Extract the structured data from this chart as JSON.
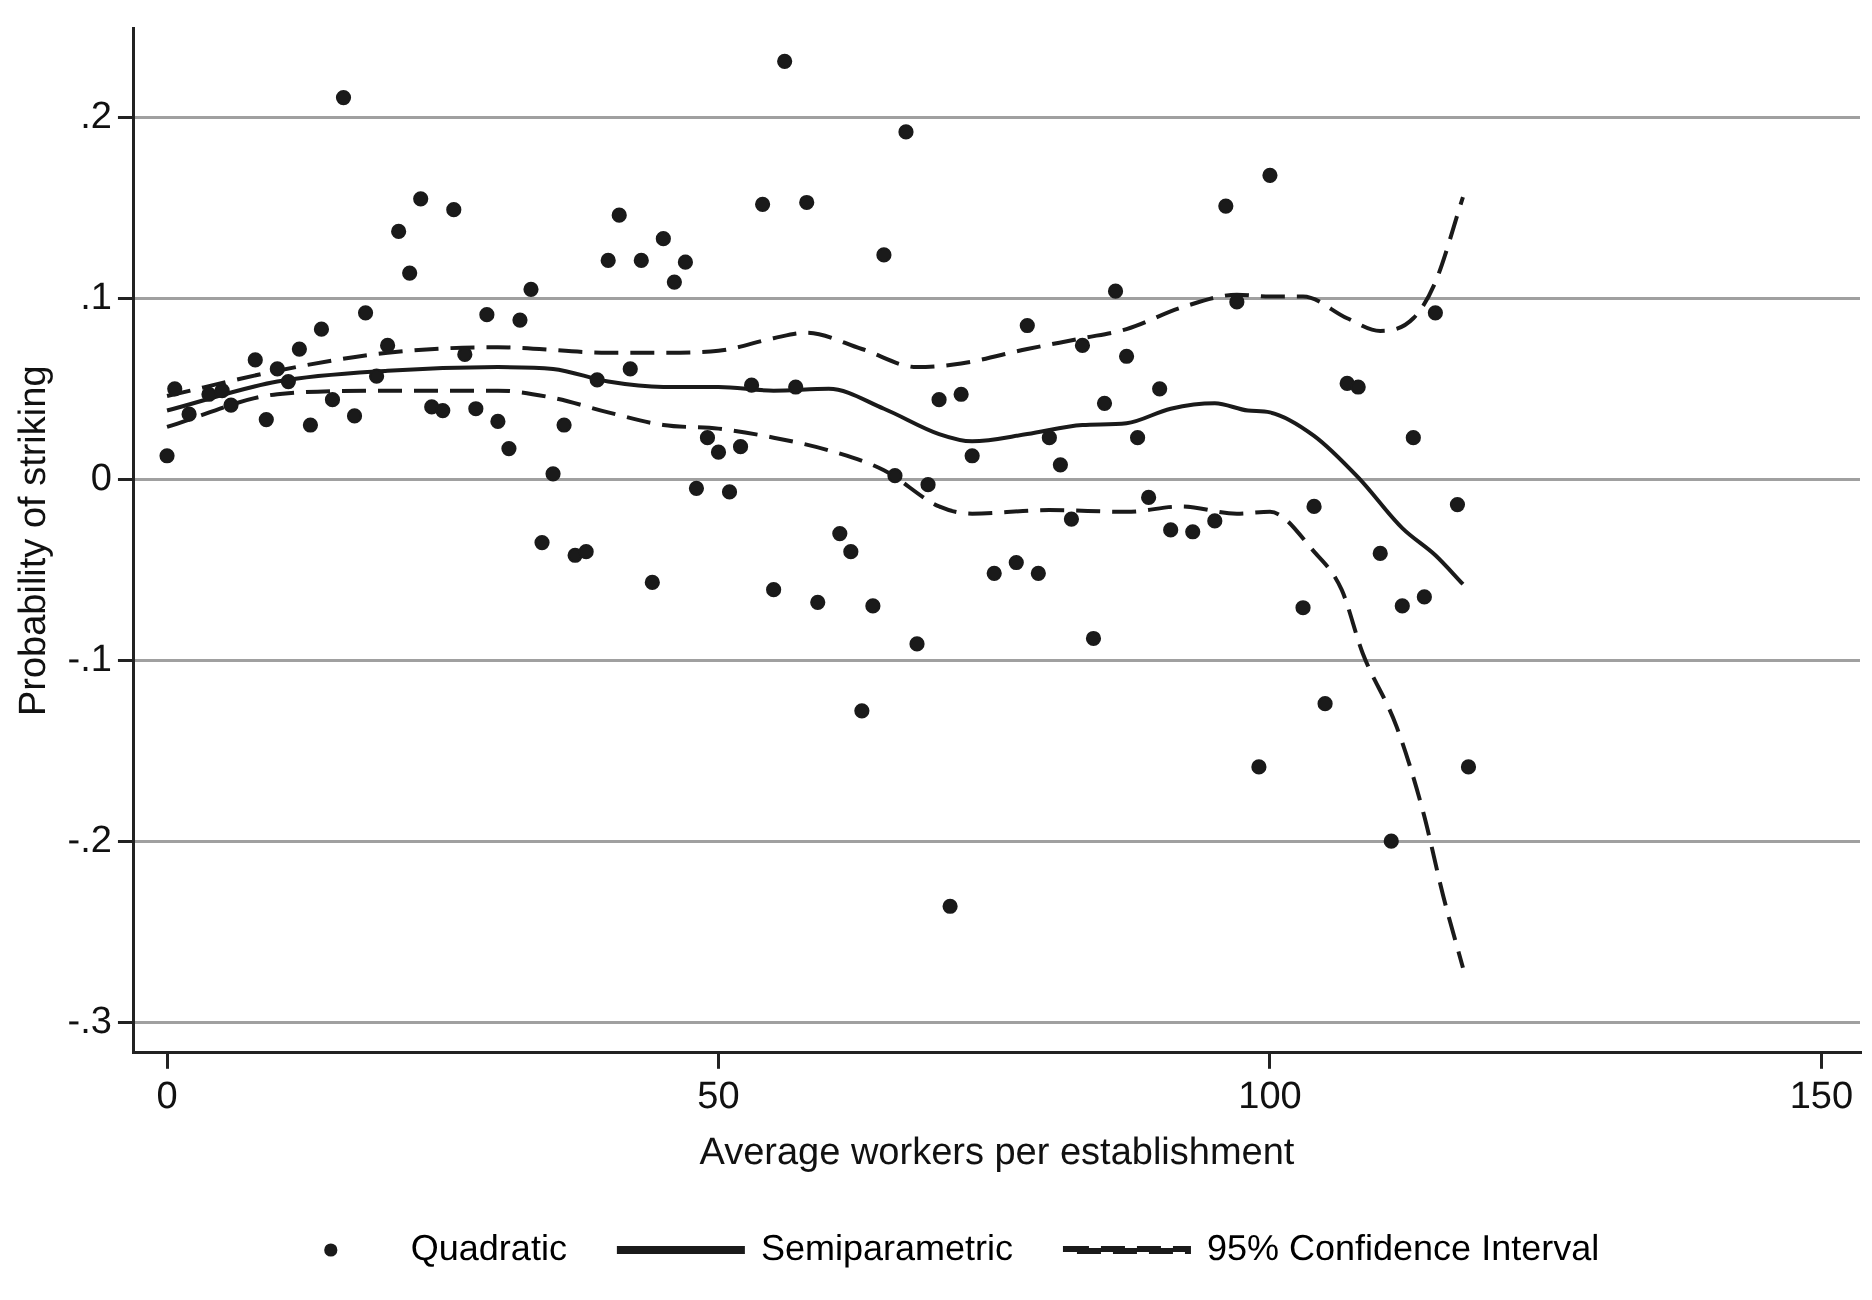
{
  "chart_data": {
    "type": "scatter",
    "xlabel": "Average workers per establishment",
    "ylabel": "Probability of striking",
    "xlim": [
      -3,
      153.5
    ],
    "xticks": [
      0,
      50,
      100,
      150
    ],
    "ylim": [
      -0.317,
      0.249
    ],
    "yticks": [
      {
        "value": 0.2,
        "label": ".2"
      },
      {
        "value": 0.1,
        "label": ".1"
      },
      {
        "value": 0,
        "label": "0"
      },
      {
        "value": -0.1,
        "label": "-.1"
      },
      {
        "value": -0.2,
        "label": "-.2"
      },
      {
        "value": -0.3,
        "label": "-.3"
      }
    ],
    "grid": "y",
    "legend": "bottom",
    "series": [
      {
        "name": "Quadratic",
        "marker": "circle",
        "color": "#1a1a1a",
        "x": [
          0,
          0.7,
          2,
          3.8,
          5,
          5.8,
          8,
          9,
          10,
          11,
          12,
          13,
          14,
          15,
          16,
          17,
          18,
          19,
          20,
          21,
          22,
          23,
          24,
          25,
          26,
          27,
          28,
          29,
          30,
          31,
          32,
          33,
          34,
          35,
          36,
          37,
          38,
          39,
          40,
          41,
          42,
          43,
          44,
          45,
          46,
          47,
          48,
          49,
          50,
          51,
          52,
          53,
          54,
          55,
          56,
          57,
          58,
          59,
          61,
          62,
          63,
          64,
          65,
          66,
          67,
          68,
          69,
          70,
          71,
          72,
          73,
          75,
          77,
          78,
          79,
          80,
          81,
          82,
          83,
          84,
          85,
          86,
          87,
          88,
          89,
          90,
          91,
          93,
          95,
          96,
          97,
          99,
          100,
          103,
          104,
          105,
          107,
          108,
          110,
          111,
          112,
          113,
          114,
          115,
          117,
          118
        ],
        "values": [
          0.013,
          0.05,
          0.036,
          0.047,
          0.049,
          0.041,
          0.066,
          0.033,
          0.061,
          0.054,
          0.072,
          0.03,
          0.083,
          0.044,
          0.211,
          0.035,
          0.092,
          0.057,
          0.074,
          0.137,
          0.114,
          0.155,
          0.04,
          0.038,
          0.149,
          0.069,
          0.039,
          0.091,
          0.032,
          0.017,
          0.088,
          0.105,
          -0.035,
          0.003,
          0.03,
          -0.042,
          -0.04,
          0.055,
          0.121,
          0.146,
          0.061,
          0.121,
          -0.057,
          0.133,
          0.109,
          0.12,
          -0.005,
          0.023,
          0.015,
          -0.007,
          0.018,
          0.052,
          0.152,
          -0.061,
          0.231,
          0.051,
          0.153,
          -0.068,
          -0.03,
          -0.04,
          -0.128,
          -0.07,
          0.124,
          0.002,
          0.192,
          -0.091,
          -0.003,
          0.044,
          -0.236,
          0.047,
          0.013,
          -0.052,
          -0.046,
          0.085,
          -0.052,
          0.023,
          0.008,
          -0.022,
          0.074,
          -0.088,
          0.042,
          0.104,
          0.068,
          0.023,
          -0.01,
          0.05,
          -0.028,
          -0.029,
          -0.023,
          0.151,
          0.098,
          -0.159,
          0.168,
          -0.071,
          -0.015,
          -0.124,
          0.053,
          0.051,
          -0.041,
          -0.2,
          -0.07,
          0.023,
          -0.065,
          0.092,
          -0.014,
          -0.159
        ]
      },
      {
        "name": "Semiparametric",
        "type": "line",
        "marker": "none",
        "line_style": "solid",
        "color": "#1a1a1a",
        "x": [
          0,
          10,
          20,
          30,
          35,
          40,
          45,
          50,
          55,
          60,
          65,
          70,
          73,
          78,
          83,
          87,
          91,
          95,
          98,
          100,
          104,
          108,
          112,
          115,
          117.5
        ],
        "values": [
          0.038,
          0.054,
          0.06,
          0.062,
          0.061,
          0.054,
          0.051,
          0.051,
          0.049,
          0.05,
          0.039,
          0.025,
          0.021,
          0.025,
          0.03,
          0.031,
          0.039,
          0.042,
          0.038,
          0.037,
          0.024,
          0.001,
          -0.027,
          -0.042,
          -0.058
        ]
      },
      {
        "name": "95% Confidence Interval",
        "type": "line",
        "marker": "none",
        "line_style": "dashed",
        "color": "#1a1a1a",
        "x": [
          0,
          10,
          20,
          30,
          40,
          45,
          50,
          55,
          58,
          63,
          68,
          72,
          78,
          83,
          87,
          92,
          97,
          100,
          103,
          107,
          110,
          113,
          115,
          117.5
        ],
        "values": [
          0.046,
          0.06,
          0.07,
          0.073,
          0.07,
          0.07,
          0.071,
          0.078,
          0.081,
          0.072,
          0.062,
          0.064,
          0.072,
          0.078,
          0.083,
          0.095,
          0.102,
          0.101,
          0.101,
          0.089,
          0.082,
          0.089,
          0.109,
          0.156
        ]
      },
      {
        "type": "line",
        "marker": "none",
        "line_style": "dashed",
        "color": "#1a1a1a",
        "x": [
          0,
          10,
          20,
          30,
          35,
          40,
          45,
          50,
          55,
          60,
          65,
          70,
          73,
          80,
          87,
          92,
          97,
          100,
          104,
          106.5,
          108.4,
          111.5,
          113.9,
          115.7,
          117.5
        ],
        "values": [
          0.029,
          0.047,
          0.049,
          0.049,
          0.045,
          0.037,
          0.03,
          0.028,
          0.023,
          0.016,
          0.005,
          -0.015,
          -0.019,
          -0.017,
          -0.018,
          -0.015,
          -0.019,
          -0.018,
          -0.04,
          -0.061,
          -0.096,
          -0.137,
          -0.184,
          -0.23,
          -0.27
        ]
      }
    ]
  }
}
